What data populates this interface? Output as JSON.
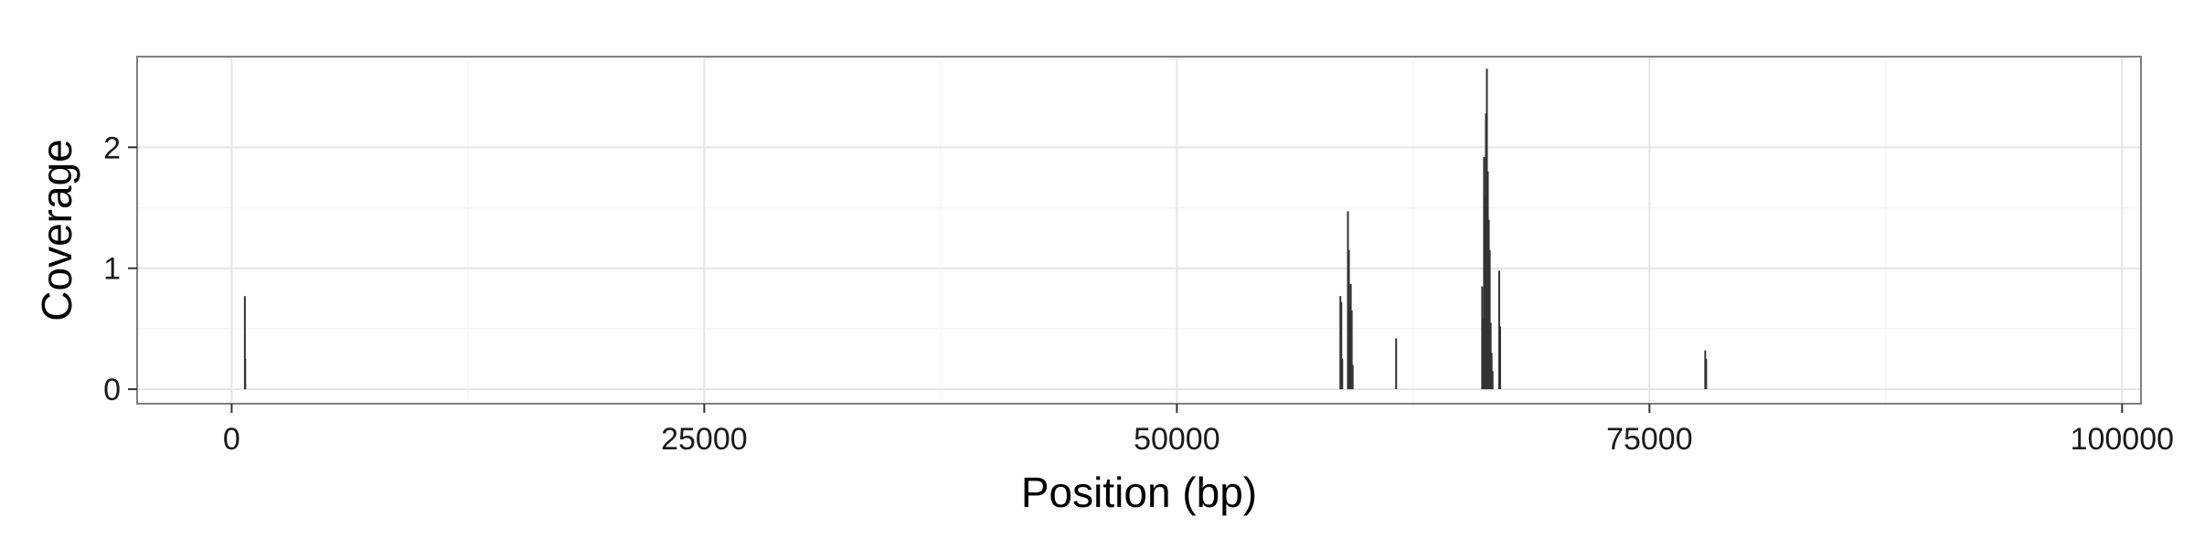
{
  "chart_data": {
    "type": "bar",
    "title": "",
    "xlabel": "Position (bp)",
    "ylabel": "Coverage",
    "xlim": [
      -5000,
      101000
    ],
    "ylim": [
      -0.12,
      2.75
    ],
    "x_ticks": [
      0,
      25000,
      50000,
      75000,
      100000
    ],
    "x_tick_labels": [
      "0",
      "25000",
      "50000",
      "75000",
      "100000"
    ],
    "y_ticks": [
      0,
      1,
      2
    ],
    "y_tick_labels": [
      "0",
      "1",
      "2"
    ],
    "grid": true,
    "legend": "none",
    "colors": {
      "bars": "#333333",
      "panel_border": "#7f7f7f",
      "grid_major": "#e5e5e5",
      "grid_minor": "#f5f5f5"
    },
    "series": [
      {
        "x": [
          700,
          720,
          58650,
          58700,
          58750,
          59050,
          59100,
          59150,
          59200,
          59250,
          59300,
          61600,
          66150,
          66200,
          66250,
          66300,
          66350,
          66400,
          66450,
          66500,
          66550,
          66600,
          66650,
          66700,
          67050,
          67100,
          77950,
          78000
        ],
        "values": [
          0.77,
          0.25,
          0.77,
          0.72,
          0.25,
          1.47,
          1.15,
          0.7,
          0.87,
          0.65,
          0.2,
          0.42,
          0.85,
          0.58,
          1.92,
          1.6,
          2.28,
          2.65,
          1.8,
          1.4,
          1.15,
          0.55,
          0.3,
          0.15,
          0.98,
          0.52,
          0.32,
          0.25
        ]
      }
    ]
  }
}
